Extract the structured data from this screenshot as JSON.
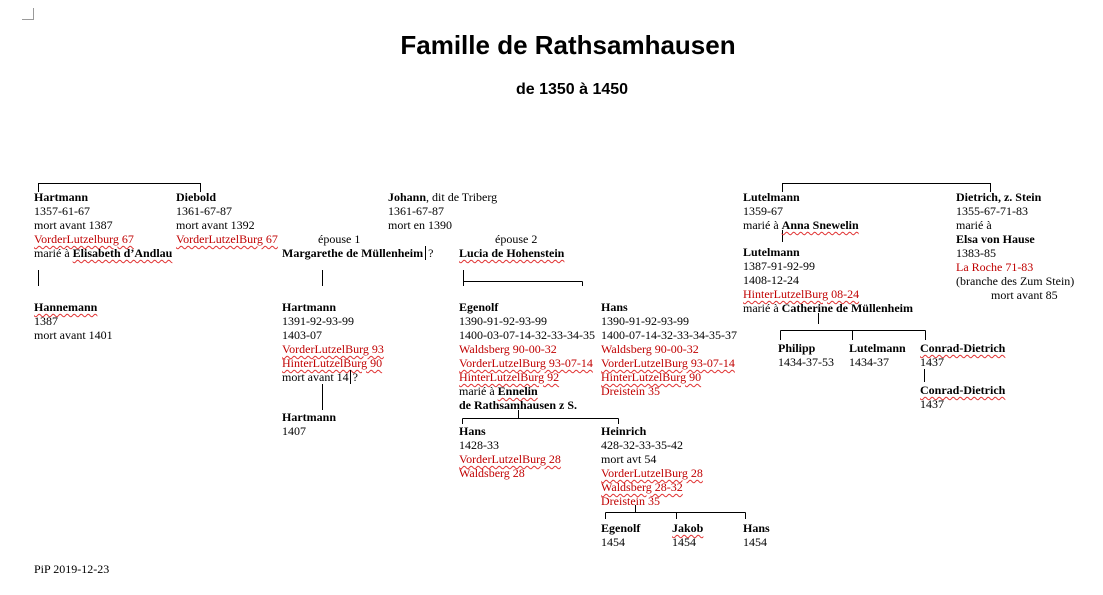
{
  "title": "Famille de Rathsamhausen",
  "subtitle": "de 1350 à 1450",
  "footer": "PiP 2019-12-23",
  "persons": {
    "hartmann_a": {
      "name": "Hartmann",
      "lines": [
        "1357-61-67",
        "mort avant 1387"
      ],
      "castle": "VorderLutzelburg 67",
      "marriage_prefix": "marié à ",
      "spouse": "Elisabeth d’Andlau"
    },
    "diebold": {
      "name": "Diebold",
      "lines": [
        "1361-67-87",
        "mort avant 1392"
      ],
      "castle": "VorderLutzelBurg 67"
    },
    "johann": {
      "name": "Johann",
      "name_suffix": ", dit de Triberg",
      "lines": [
        "1361-67-87",
        "mort en 1390"
      ]
    },
    "margarethe": {
      "label": "épouse 1",
      "name": "Margarethe de Müllenheim",
      "suffix": "?"
    },
    "lucia": {
      "label": "épouse 2",
      "name": "Lucia de Hohenstein"
    },
    "hannemann": {
      "name": "Hannemann",
      "lines": [
        "1387",
        "mort avant 1401"
      ]
    },
    "hartmann_b": {
      "name": "Hartmann",
      "lines": [
        "1391-92-93-99",
        "1403-07"
      ],
      "castles": [
        "VorderLutzelBurg 93",
        "HinterLutzelBurg 90"
      ],
      "death": "mort avant 14",
      "death_suffix": "?"
    },
    "hartmann_c": {
      "name": "Hartmann",
      "lines": [
        "1407"
      ]
    },
    "egenolf": {
      "name": "Egenolf",
      "lines": [
        "1390-91-92-93-99",
        "1400-03-07-14-32-33-34-35"
      ],
      "castles": [
        "Waldsberg 90-00-32",
        "VorderLutzelBurg 93-07-14",
        "HinterLutzelBurg 92"
      ],
      "marriage_prefix": "marié à ",
      "spouse": "Ennelin",
      "spouse2": "de Rathsamhausen z S."
    },
    "hans_a": {
      "name": "Hans",
      "lines": [
        "1390-91-92-93-99",
        "1400-07-14-32-33-34-35-37"
      ],
      "castles": [
        "Waldsberg 90-00-32",
        "VorderLutzelBurg 93-07-14",
        "HinterLutzelBurg 90",
        "Dreistein 35"
      ]
    },
    "hans_b": {
      "name": "Hans",
      "lines": [
        "1428-33"
      ],
      "castles": [
        "VorderLutzelBurg 28",
        "Waldsberg 28"
      ]
    },
    "heinrich": {
      "name": "Heinrich",
      "lines": [
        "428-32-33-35-42",
        "mort avt 54"
      ],
      "castles": [
        "VorderLutzelBurg 28",
        "Waldsberg 28-32",
        "Dreistein 35"
      ]
    },
    "egenolf_b": {
      "name": "Egenolf",
      "lines": [
        "1454"
      ]
    },
    "jakob": {
      "name": "Jakob",
      "lines": [
        "1454"
      ]
    },
    "hans_c": {
      "name": "Hans",
      "lines": [
        "1454"
      ]
    },
    "lutelmann_a": {
      "name": "Lutelmann",
      "lines": [
        "1359-67"
      ],
      "marriage_prefix": "marié à ",
      "spouse": "Anna Snewelin"
    },
    "dietrich": {
      "name": "Dietrich, z. Stein",
      "lines": [
        "1355-67-71-83",
        "marié à"
      ],
      "spouse": "Elsa von Hause",
      "lines2": [
        "1383-85"
      ],
      "castle": "La Roche 71-83",
      "lines3": [
        "(branche des Zum Stein)",
        "mort avant 85"
      ]
    },
    "lutelmann_b": {
      "name": "Lutelmann",
      "lines": [
        "1387-91-92-99",
        "1408-12-24"
      ],
      "castle": "HinterLutzelBurg 08-24",
      "marriage_prefix": "marié à ",
      "spouse": "Catherine de Müllenheim"
    },
    "philipp": {
      "name": "Philipp",
      "lines": [
        "1434-37-53"
      ]
    },
    "lutelmann_c": {
      "name": "Lutelmann",
      "lines": [
        "1434-37"
      ]
    },
    "conrad_a": {
      "name": "Conrad-Dietrich",
      "lines": [
        "1437"
      ]
    },
    "conrad_b": {
      "name": "Conrad-Dietrich",
      "lines": [
        "1437"
      ]
    }
  },
  "colors": {
    "castle": "#c00000",
    "text": "#000000",
    "spellcheck": "#e03030"
  }
}
